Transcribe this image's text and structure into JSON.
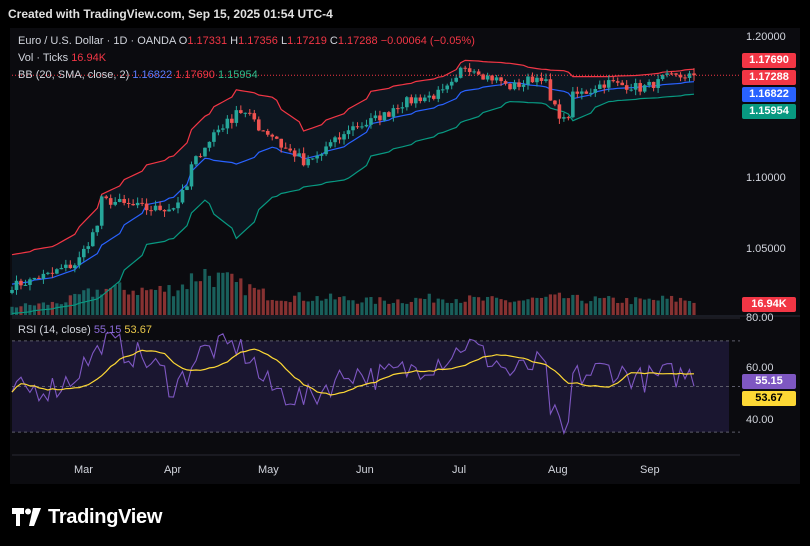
{
  "header": {
    "title": "Created with TradingView.com, Sep 15, 2025 01:54 UTC-4"
  },
  "legend": {
    "symbol": "Euro / U.S. Dollar · 1D · OANDA",
    "o_label": "O",
    "o": "1.17331",
    "h_label": "H",
    "h": "1.17356",
    "l_label": "L",
    "l": "1.17219",
    "c_label": "C",
    "c": "1.17288",
    "chg": "−0.00064 (−0.05%)",
    "vol_label": "Vol · Ticks",
    "vol": "16.94K",
    "bb_label": "BB (20, SMA, close, 2)",
    "bb_mid": "1.16822",
    "bb_up": "1.17690",
    "bb_low": "1.15954",
    "rsi_label": "RSI (14, close)",
    "rsi": "55.15",
    "rsi_ma": "53.67"
  },
  "price_axis": {
    "ticks": [
      "1.20000",
      "1.10000",
      "1.05000"
    ],
    "tags": {
      "bb_up": "1.17690",
      "close": "1.17288",
      "bb_mid": "1.16822",
      "bb_low": "1.15954",
      "volume": "16.94K"
    }
  },
  "rsi_axis": {
    "ticks": [
      "80.00",
      "60.00",
      "40.00"
    ],
    "tags": {
      "rsi": "55.15",
      "rsi_ma": "53.67"
    }
  },
  "months": [
    "Mar",
    "Apr",
    "May",
    "Jun",
    "Jul",
    "Aug",
    "Sep"
  ],
  "brand": {
    "name": "TradingView"
  },
  "colors": {
    "up": "#26a69a",
    "down": "#ef5350",
    "bb_mid": "#2962ff",
    "bb_band": "#f23645",
    "bb_low": "#089981",
    "rsi": "#7e57c2",
    "rsi_ma": "#fdd835"
  },
  "chart_data": {
    "type": "candlestick",
    "symbol": "EURUSD",
    "timeframe": "1D",
    "price_range": [
      1.01,
      1.205
    ],
    "rsi_range": [
      20,
      80
    ],
    "rsi_levels": [
      70,
      50,
      30
    ],
    "anchors": {
      "dates": [
        "2025-02-10",
        "2025-02-24",
        "2025-03-03",
        "2025-03-10",
        "2025-03-24",
        "2025-04-01",
        "2025-04-10",
        "2025-04-21",
        "2025-05-01",
        "2025-05-12",
        "2025-05-26",
        "2025-06-02",
        "2025-06-12",
        "2025-06-24",
        "2025-07-01",
        "2025-07-15",
        "2025-07-24",
        "2025-07-31",
        "2025-08-04",
        "2025-08-14",
        "2025-08-25",
        "2025-09-01",
        "2025-09-10"
      ],
      "close": [
        1.03,
        1.04,
        1.048,
        1.088,
        1.082,
        1.083,
        1.125,
        1.15,
        1.132,
        1.112,
        1.137,
        1.142,
        1.155,
        1.161,
        1.179,
        1.165,
        1.172,
        1.142,
        1.159,
        1.168,
        1.164,
        1.171,
        1.173
      ]
    },
    "bb_upper_anchors": [
      1.051,
      1.058,
      1.07,
      1.092,
      1.112,
      1.118,
      1.145,
      1.163,
      1.158,
      1.135,
      1.15,
      1.162,
      1.167,
      1.172,
      1.183,
      1.181,
      1.177,
      1.176,
      1.172,
      1.172,
      1.173,
      1.175,
      1.177
    ],
    "bb_lower_anchors": [
      1.011,
      1.015,
      1.018,
      1.023,
      1.058,
      1.062,
      1.088,
      1.062,
      1.09,
      1.097,
      1.103,
      1.118,
      1.125,
      1.134,
      1.142,
      1.155,
      1.154,
      1.148,
      1.142,
      1.155,
      1.157,
      1.158,
      1.16
    ],
    "rsi_anchors": [
      48,
      50,
      58,
      70,
      61,
      50,
      66,
      68,
      49,
      44,
      57,
      54,
      57,
      62,
      69,
      56,
      60,
      27,
      54,
      58,
      53,
      55,
      55
    ],
    "volume_range": [
      0,
      80
    ],
    "volume_anchors": [
      10,
      14,
      22,
      30,
      28,
      30,
      48,
      34,
      22,
      20,
      18,
      16,
      17,
      20,
      18,
      16,
      18,
      20,
      18,
      17,
      16,
      18,
      17
    ],
    "last": {
      "open": 1.17331,
      "high": 1.17356,
      "low": 1.17219,
      "close": 1.17288
    }
  }
}
